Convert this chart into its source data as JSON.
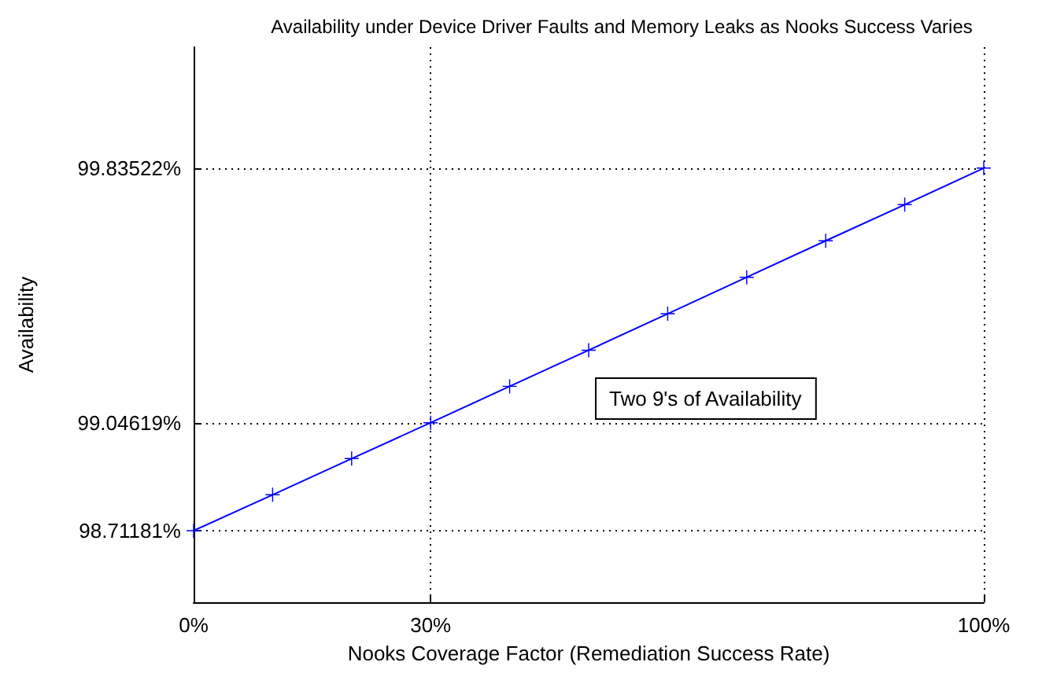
{
  "chart_data": {
    "type": "line",
    "title": "Availability under Device Driver Faults and Memory Leaks as Nooks Success Varies",
    "xlabel": "Nooks Coverage Factor (Remediation Success Rate)",
    "ylabel": "Availability",
    "x": [
      0,
      10,
      20,
      30,
      40,
      50,
      60,
      70,
      80,
      90,
      100
    ],
    "series": [
      {
        "color": "#0000ff",
        "values": [
          98.71181,
          98.823,
          98.935,
          99.04619,
          99.159,
          99.271,
          99.384,
          99.497,
          99.61,
          99.722,
          99.83522
        ]
      }
    ],
    "xlim": [
      0,
      100
    ],
    "xticks": [
      {
        "value": 0,
        "label": "0%"
      },
      {
        "value": 30,
        "label": "30%"
      },
      {
        "value": 100,
        "label": "100%"
      }
    ],
    "ylim": [
      98.49,
      100.21
    ],
    "yticks": [
      {
        "value": 98.71181,
        "label": "98.71181%"
      },
      {
        "value": 99.04619,
        "label": "99.04619%"
      },
      {
        "value": 99.83522,
        "label": "99.83522%"
      }
    ],
    "annotations": [
      "Two 9's of Availability"
    ],
    "grid": true,
    "marker": "cross",
    "line_style": "solid"
  }
}
